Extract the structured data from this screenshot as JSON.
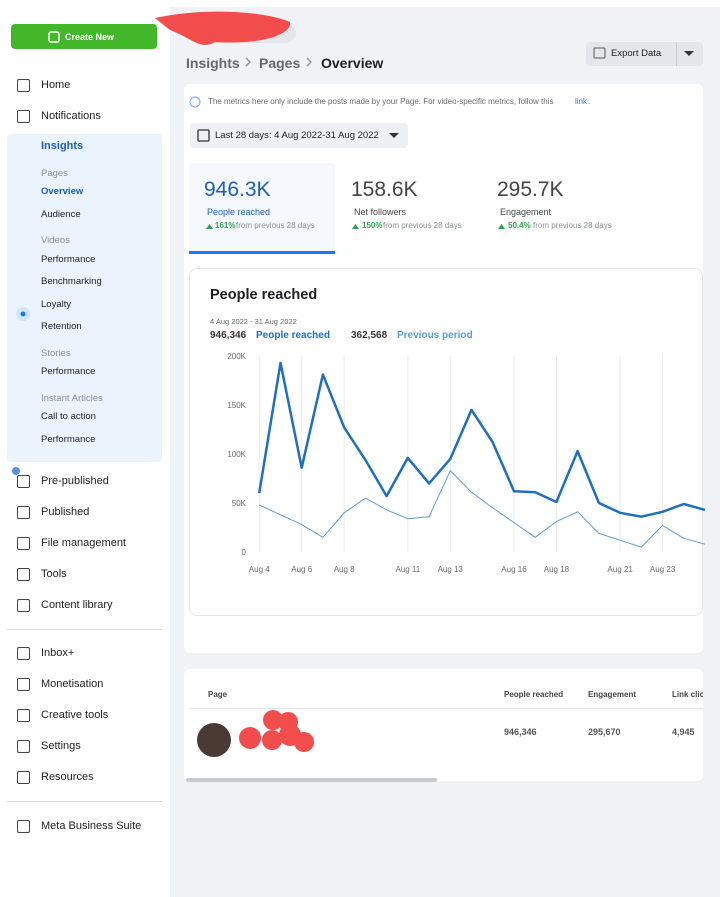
{
  "sidebar": {
    "create_button": "Create New",
    "primary": [
      "Home",
      "Notifications"
    ],
    "insights": {
      "label": "Insights",
      "sections": [
        {
          "title": "Pages",
          "items": [
            "Overview",
            "Audience"
          ]
        },
        {
          "title": "Videos",
          "items": [
            "Performance",
            "Benchmarking",
            "Loyalty",
            "Retention"
          ]
        },
        {
          "title": "Stories",
          "items": [
            "Performance"
          ]
        },
        {
          "title": "Instant Articles",
          "items": [
            "Call to action",
            "Performance"
          ]
        }
      ]
    },
    "group1": [
      "Pre-published",
      "Published",
      "File management",
      "Tools",
      "Content library"
    ],
    "group2": [
      "Inbox+",
      "Monetisation",
      "Creative tools",
      "Settings",
      "Resources"
    ],
    "footer": "Meta Business Suite"
  },
  "header": {
    "breadcrumbs": [
      "Insights",
      "Pages",
      "Overview"
    ],
    "export_button": "Export Data"
  },
  "notice": {
    "text": "The metrics here only include the posts made by your Page. For video-specific metrics, follow this",
    "link": "link",
    "end": "."
  },
  "date_filter": "Last 28 days: 4 Aug 2022-31 Aug 2022",
  "metrics": [
    {
      "value": "946.3K",
      "label": "People reached",
      "change": "161%",
      "change_text": "from previous 28 days"
    },
    {
      "value": "158.6K",
      "label": "Net followers",
      "change": "150%",
      "change_text": "from previous 28 days"
    },
    {
      "value": "295.7K",
      "label": "Engagement",
      "change": "50.4%",
      "change_text": "from previous 28 days"
    }
  ],
  "chart_data": {
    "type": "line",
    "title": "People reached",
    "subtitle": "4 Aug 2022 - 31 Aug 2022",
    "x": [
      4,
      5,
      6,
      7,
      8,
      9,
      10,
      11,
      12,
      13,
      14,
      15,
      16,
      17,
      18,
      19,
      20,
      21,
      22,
      23,
      24,
      25
    ],
    "series": [
      {
        "name": "People reached",
        "total": "946,346",
        "color": "#1f6fbf",
        "values": [
          60000,
          193000,
          86000,
          181000,
          127000,
          94000,
          57000,
          96000,
          70000,
          95000,
          145000,
          112000,
          62000,
          61000,
          51000,
          103000,
          50000,
          40000,
          36000,
          41000,
          49000,
          43000
        ]
      },
      {
        "name": "Previous period",
        "total": "362,568",
        "color": "#5b9bd5",
        "values": [
          48000,
          38000,
          28000,
          15000,
          40000,
          55000,
          43000,
          34000,
          36000,
          83000,
          61000,
          45000,
          30000,
          15000,
          31000,
          41000,
          19000,
          12000,
          5000,
          27000,
          14000,
          8000
        ]
      }
    ],
    "xlim": [
      3.8,
      25
    ],
    "xticks": [
      {
        "value": 4,
        "label": "Aug 4"
      },
      {
        "value": 6,
        "label": "Aug 6"
      },
      {
        "value": 8,
        "label": "Aug 8"
      },
      {
        "value": 11,
        "label": "Aug 11"
      },
      {
        "value": 13,
        "label": "Aug 13"
      },
      {
        "value": 16,
        "label": "Aug 16"
      },
      {
        "value": 18,
        "label": "Aug 18"
      },
      {
        "value": 21,
        "label": "Aug 21"
      },
      {
        "value": 23,
        "label": "Aug 23"
      }
    ],
    "ylim": [
      0,
      200000
    ],
    "yticks": [
      0,
      {
        "value": 50000,
        "label": "50K"
      },
      {
        "value": 100000,
        "label": "100K"
      },
      {
        "value": 150000,
        "label": "150K"
      },
      {
        "value": 200000,
        "label": "200K"
      }
    ],
    "grid": true
  },
  "table": {
    "headers": [
      "Page",
      "People reached",
      "Engagement",
      "Link clicks"
    ],
    "rows": [
      [
        "946,346",
        "295,670",
        "4,945"
      ]
    ]
  }
}
